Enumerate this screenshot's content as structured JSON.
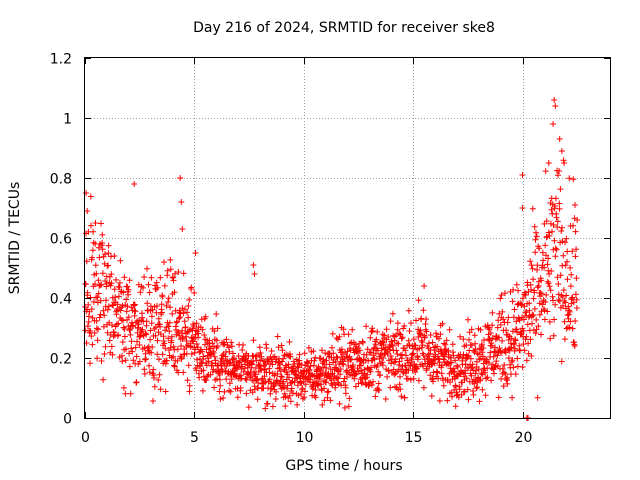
{
  "chart_data": {
    "type": "scatter",
    "title": "Day 216 of 2024, SRMTID for receiver ske8",
    "xlabel": "GPS time / hours",
    "ylabel": "SRMTID / TECUs",
    "xlim": [
      0,
      24
    ],
    "ylim": [
      0,
      1.2
    ],
    "xticks": [
      0,
      5,
      10,
      15,
      20
    ],
    "xtick_labels": [
      "0",
      "5",
      "10",
      "15",
      "20"
    ],
    "yticks": [
      0,
      0.2,
      0.4,
      0.6,
      0.8,
      1.0,
      1.2
    ],
    "ytick_labels": [
      "0",
      "0.2",
      "0.4",
      "0.6",
      "0.8",
      "1",
      "1.2"
    ],
    "grid": true,
    "marker": "+",
    "color": "#ff0000",
    "series": [
      {
        "name": "SRMTID",
        "profile": [
          {
            "x": 0.0,
            "y": 0.4
          },
          {
            "x": 0.5,
            "y": 0.42
          },
          {
            "x": 1.0,
            "y": 0.4
          },
          {
            "x": 1.5,
            "y": 0.36
          },
          {
            "x": 2.0,
            "y": 0.33
          },
          {
            "x": 2.5,
            "y": 0.3
          },
          {
            "x": 3.0,
            "y": 0.3
          },
          {
            "x": 3.5,
            "y": 0.33
          },
          {
            "x": 4.0,
            "y": 0.32
          },
          {
            "x": 4.5,
            "y": 0.3
          },
          {
            "x": 5.0,
            "y": 0.25
          },
          {
            "x": 5.5,
            "y": 0.22
          },
          {
            "x": 6.0,
            "y": 0.2
          },
          {
            "x": 6.5,
            "y": 0.17
          },
          {
            "x": 7.0,
            "y": 0.15
          },
          {
            "x": 7.5,
            "y": 0.15
          },
          {
            "x": 8.0,
            "y": 0.15
          },
          {
            "x": 8.5,
            "y": 0.15
          },
          {
            "x": 9.0,
            "y": 0.15
          },
          {
            "x": 9.5,
            "y": 0.14
          },
          {
            "x": 10.0,
            "y": 0.14
          },
          {
            "x": 10.5,
            "y": 0.14
          },
          {
            "x": 11.0,
            "y": 0.15
          },
          {
            "x": 11.5,
            "y": 0.17
          },
          {
            "x": 12.0,
            "y": 0.18
          },
          {
            "x": 12.5,
            "y": 0.19
          },
          {
            "x": 13.0,
            "y": 0.19
          },
          {
            "x": 13.5,
            "y": 0.2
          },
          {
            "x": 14.0,
            "y": 0.2
          },
          {
            "x": 14.5,
            "y": 0.2
          },
          {
            "x": 15.0,
            "y": 0.22
          },
          {
            "x": 15.5,
            "y": 0.23
          },
          {
            "x": 16.0,
            "y": 0.2
          },
          {
            "x": 16.5,
            "y": 0.18
          },
          {
            "x": 17.0,
            "y": 0.17
          },
          {
            "x": 17.5,
            "y": 0.18
          },
          {
            "x": 18.0,
            "y": 0.2
          },
          {
            "x": 18.5,
            "y": 0.22
          },
          {
            "x": 19.0,
            "y": 0.24
          },
          {
            "x": 19.5,
            "y": 0.26
          },
          {
            "x": 20.0,
            "y": 0.3
          },
          {
            "x": 20.5,
            "y": 0.38
          },
          {
            "x": 21.0,
            "y": 0.45
          },
          {
            "x": 21.5,
            "y": 0.55
          },
          {
            "x": 22.0,
            "y": 0.5
          },
          {
            "x": 22.5,
            "y": 0.4
          }
        ],
        "peaks": [
          {
            "x": 0.05,
            "y": 0.75
          },
          {
            "x": 0.1,
            "y": 0.69
          },
          {
            "x": 2.25,
            "y": 0.78
          },
          {
            "x": 4.35,
            "y": 0.8
          },
          {
            "x": 4.4,
            "y": 0.72
          },
          {
            "x": 4.45,
            "y": 0.63
          },
          {
            "x": 7.7,
            "y": 0.51
          },
          {
            "x": 7.75,
            "y": 0.48
          },
          {
            "x": 5.05,
            "y": 0.55
          },
          {
            "x": 15.5,
            "y": 0.44
          },
          {
            "x": 20.0,
            "y": 0.81
          },
          {
            "x": 20.0,
            "y": 0.7
          },
          {
            "x": 21.45,
            "y": 1.06
          },
          {
            "x": 21.5,
            "y": 1.04
          },
          {
            "x": 21.4,
            "y": 0.98
          },
          {
            "x": 21.7,
            "y": 0.93
          },
          {
            "x": 21.8,
            "y": 0.89
          },
          {
            "x": 21.2,
            "y": 0.85
          },
          {
            "x": 22.4,
            "y": 0.71
          },
          {
            "x": 22.5,
            "y": 0.66
          },
          {
            "x": 20.2,
            "y": 0.0
          },
          {
            "x": 20.25,
            "y": 0.0
          }
        ]
      }
    ]
  }
}
